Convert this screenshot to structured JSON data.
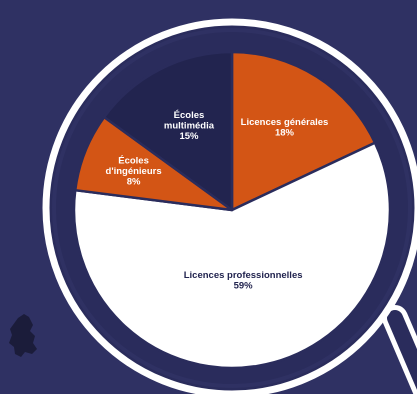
{
  "chart_data": {
    "type": "pie",
    "title": "",
    "slices": [
      {
        "label_lines": [
          "Licences générales"
        ],
        "value": 18,
        "value_label": "18%",
        "color": "#d35515",
        "text_color": "#ffffff"
      },
      {
        "label_lines": [
          "Licences professionnelles"
        ],
        "value": 59,
        "value_label": "59%",
        "color": "#ffffff",
        "text_color": "#22244f"
      },
      {
        "label_lines": [
          "Écoles",
          "d'ingénieurs"
        ],
        "value": 8,
        "value_label": "8%",
        "color": "#d35515",
        "text_color": "#ffffff"
      },
      {
        "label_lines": [
          "Écoles",
          "multimédia"
        ],
        "value": 15,
        "value_label": "15%",
        "color": "#22244f",
        "text_color": "#ffffff"
      }
    ],
    "start_angle_deg": 0,
    "legend": "none"
  },
  "colors": {
    "background": "#2f3163",
    "ring": "#ffffff",
    "ring_inner": "#2a2c5c",
    "accent": "#d35515",
    "dark": "#22244f"
  },
  "icons": {
    "magnifier": "magnifier-icon",
    "map_fragment": "map-fragment-icon"
  }
}
